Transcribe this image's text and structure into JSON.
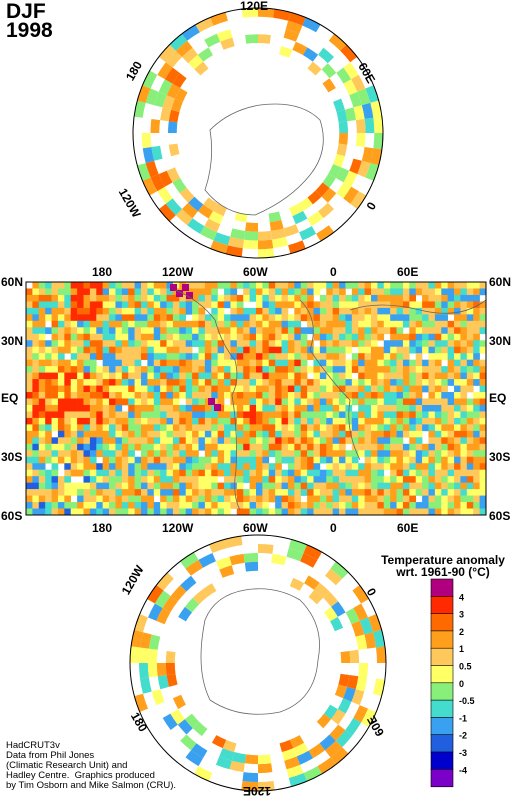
{
  "header": {
    "season": "DJF",
    "year": "1998"
  },
  "credit": "HadCRUT3v\nData from Phil Jones\n(Climatic Research Unit) and\nHadley Centre.  Graphics produced\nby Tim Osborn and Mike Salmon (CRU).",
  "north_polar": {
    "labels": {
      "top": "120E",
      "right": "60E",
      "left": "180",
      "lower_left": "120W",
      "lower_right": "0"
    }
  },
  "equirect": {
    "top_lon": [
      "180",
      "120W",
      "60W",
      "0",
      "60E"
    ],
    "bottom_lon": [
      "180",
      "120W",
      "60W",
      "0",
      "60E"
    ],
    "left_lat": [
      "60N",
      "30N",
      "EQ",
      "30S",
      "60S"
    ],
    "right_lat": [
      "60N",
      "30N",
      "EQ",
      "30S",
      "60S"
    ]
  },
  "south_polar": {
    "labels": {
      "upper_left": "120W",
      "upper_right": "0",
      "lower_left": "180",
      "lower_right": "60E",
      "bottom": "120E"
    }
  },
  "legend": {
    "title_line1": "Temperature anomaly",
    "title_line2": "wrt. 1961-90  (°C)",
    "ticks": [
      "4",
      "3",
      "2",
      "1",
      "0.5",
      "0",
      "-0.5",
      "-1",
      "-2",
      "-3",
      "-4"
    ],
    "colors": [
      "#b0007f",
      "#ff2a00",
      "#ff6a00",
      "#ff9f1c",
      "#ffc85a",
      "#ffff66",
      "#88f07a",
      "#44dccc",
      "#3aa0f0",
      "#1f5fe0",
      "#0000cc",
      "#7b00c8"
    ]
  }
}
